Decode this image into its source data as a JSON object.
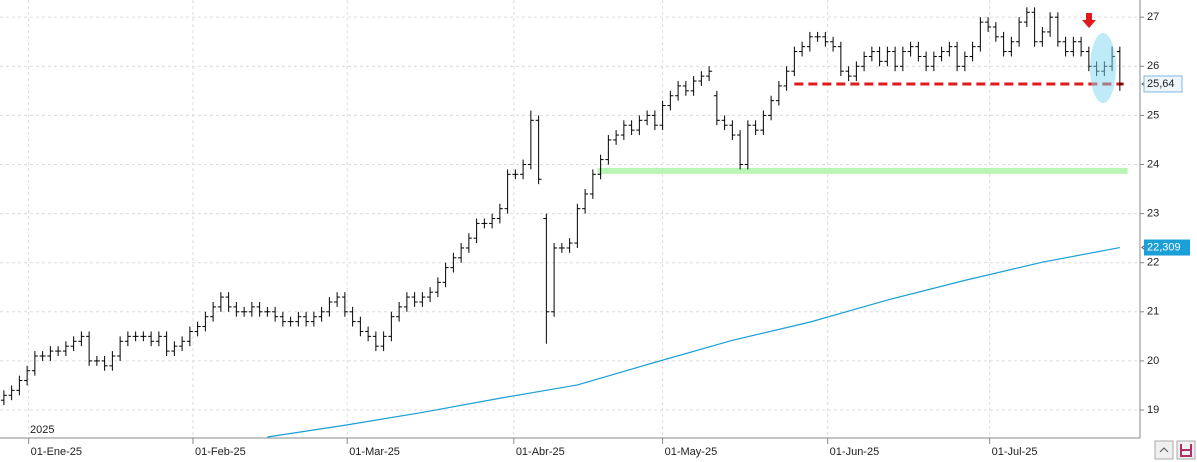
{
  "chart_data": {
    "type": "ohlc",
    "annotation": "2025",
    "xlim": [
      -0.5,
      146.6
    ],
    "xticks": [
      {
        "value": 3.2,
        "label": "01-Ene-25"
      },
      {
        "value": 24.4,
        "label": "01-Feb-25"
      },
      {
        "value": 44.3,
        "label": "01-Mar-25"
      },
      {
        "value": 65.8,
        "label": "01-Abr-25"
      },
      {
        "value": 85,
        "label": "01-May-25"
      },
      {
        "value": 106.3,
        "label": "01-Jun-25"
      },
      {
        "value": 127.2,
        "label": "01-Jul-25"
      }
    ],
    "ylim": [
      18.43,
      27.35
    ],
    "yticks": [
      19,
      20,
      21,
      22,
      23,
      24,
      25,
      26,
      27
    ],
    "grid": true,
    "bar_color": "#000000",
    "open": [
      19.2,
      19.3,
      19.4,
      19.6,
      19.8,
      20.1,
      20.1,
      20.2,
      20.2,
      20.3,
      20.4,
      20.5,
      20.0,
      20.0,
      19.9,
      20.1,
      20.4,
      20.5,
      20.5,
      20.5,
      20.4,
      20.5,
      20.2,
      20.3,
      20.4,
      20.6,
      20.7,
      20.9,
      21.1,
      21.3,
      21.1,
      21.0,
      21.0,
      21.1,
      21.0,
      21.0,
      20.9,
      20.8,
      20.8,
      20.9,
      20.8,
      20.9,
      21.0,
      21.2,
      21.3,
      21.0,
      20.8,
      20.6,
      20.5,
      20.3,
      20.5,
      20.9,
      21.1,
      21.3,
      21.2,
      21.3,
      21.4,
      21.6,
      21.9,
      22.1,
      22.3,
      22.5,
      22.8,
      22.8,
      22.9,
      23.1,
      23.8,
      23.8,
      24.0,
      24.9,
      22.9,
      21.0,
      22.3,
      22.3,
      22.4,
      23.1,
      23.4,
      23.8,
      24.1,
      24.5,
      24.6,
      24.8,
      24.7,
      24.9,
      25.0,
      24.8,
      25.2,
      25.4,
      25.6,
      25.5,
      25.7,
      25.8,
      25.4,
      24.9,
      24.8,
      24.6,
      24.0,
      24.8,
      24.7,
      25.0,
      25.3,
      25.6,
      25.9,
      26.3,
      26.4,
      26.6,
      26.6,
      26.5,
      26.4,
      25.9,
      25.8,
      26.0,
      26.2,
      26.3,
      26.1,
      26.3,
      26.0,
      26.3,
      26.4,
      26.2,
      26.0,
      26.2,
      26.3,
      26.4,
      26.0,
      26.2,
      26.4,
      26.9,
      26.8,
      26.6,
      26.3,
      26.5,
      26.9,
      27.1,
      26.5,
      26.7,
      27.0,
      26.5,
      26.3,
      26.5,
      26.3,
      26.0,
      25.9,
      26.0,
      26.3
    ],
    "high": [
      19.4,
      19.5,
      19.7,
      19.9,
      20.2,
      20.2,
      20.3,
      20.3,
      20.4,
      20.5,
      20.6,
      20.6,
      20.1,
      20.1,
      20.2,
      20.5,
      20.6,
      20.6,
      20.6,
      20.6,
      20.6,
      20.6,
      20.4,
      20.5,
      20.7,
      20.8,
      21.0,
      21.2,
      21.4,
      21.4,
      21.2,
      21.1,
      21.2,
      21.2,
      21.1,
      21.1,
      21.0,
      20.9,
      21.0,
      21.0,
      21.0,
      21.1,
      21.3,
      21.4,
      21.4,
      21.1,
      20.9,
      20.7,
      20.6,
      20.6,
      21.0,
      21.2,
      21.4,
      21.4,
      21.4,
      21.5,
      21.7,
      22.0,
      22.2,
      22.4,
      22.6,
      22.9,
      22.9,
      23.0,
      23.2,
      23.9,
      23.9,
      24.1,
      25.1,
      25.0,
      23.0,
      22.4,
      22.4,
      22.5,
      23.2,
      23.5,
      23.9,
      24.2,
      24.6,
      24.7,
      24.9,
      24.9,
      25.0,
      25.1,
      25.1,
      25.3,
      25.5,
      25.7,
      25.7,
      25.8,
      25.9,
      26.0,
      25.5,
      25.0,
      24.9,
      24.7,
      24.9,
      24.9,
      25.1,
      25.4,
      25.7,
      26.0,
      26.4,
      26.5,
      26.7,
      26.7,
      26.7,
      26.6,
      26.5,
      26.0,
      26.1,
      26.3,
      26.4,
      26.4,
      26.4,
      26.4,
      26.4,
      26.5,
      26.5,
      26.3,
      26.3,
      26.4,
      26.5,
      26.5,
      26.3,
      26.5,
      27.0,
      27.0,
      26.9,
      26.7,
      26.6,
      27.0,
      27.2,
      27.2,
      26.8,
      27.1,
      27.1,
      26.6,
      26.6,
      26.6,
      26.4,
      26.1,
      26.1,
      26.4,
      26.4
    ],
    "low": [
      19.1,
      19.2,
      19.3,
      19.5,
      19.7,
      20.0,
      20.0,
      20.1,
      20.1,
      20.2,
      20.3,
      19.9,
      19.9,
      19.8,
      19.8,
      20.0,
      20.3,
      20.4,
      20.4,
      20.3,
      20.3,
      20.1,
      20.1,
      20.2,
      20.3,
      20.5,
      20.6,
      20.8,
      21.0,
      21.0,
      20.9,
      20.9,
      20.9,
      20.9,
      20.9,
      20.8,
      20.7,
      20.7,
      20.7,
      20.7,
      20.7,
      20.8,
      20.9,
      21.1,
      20.9,
      20.7,
      20.5,
      20.4,
      20.2,
      20.2,
      20.4,
      20.8,
      21.0,
      21.1,
      21.1,
      21.2,
      21.3,
      21.5,
      21.8,
      22.0,
      22.2,
      22.4,
      22.7,
      22.7,
      22.8,
      23.0,
      23.7,
      23.7,
      23.9,
      23.6,
      20.35,
      20.9,
      22.2,
      22.2,
      22.3,
      23.0,
      23.3,
      23.7,
      24.0,
      24.4,
      24.5,
      24.6,
      24.6,
      24.8,
      24.7,
      24.7,
      25.1,
      25.3,
      25.4,
      25.4,
      25.6,
      25.7,
      24.8,
      24.7,
      24.5,
      23.9,
      23.9,
      24.6,
      24.6,
      24.9,
      25.2,
      25.5,
      25.8,
      26.2,
      26.3,
      26.5,
      26.4,
      26.3,
      25.8,
      25.7,
      25.7,
      25.9,
      26.1,
      26.0,
      26.0,
      25.9,
      25.9,
      26.2,
      26.1,
      25.9,
      25.9,
      26.1,
      26.2,
      25.9,
      25.9,
      26.1,
      26.3,
      26.7,
      26.5,
      26.2,
      26.2,
      26.4,
      26.8,
      26.4,
      26.4,
      26.6,
      26.4,
      26.2,
      26.2,
      26.2,
      25.9,
      25.8,
      25.8,
      25.9,
      25.5
    ],
    "close": [
      19.3,
      19.4,
      19.6,
      19.8,
      20.1,
      20.1,
      20.2,
      20.2,
      20.3,
      20.4,
      20.5,
      20.0,
      20.0,
      19.9,
      20.1,
      20.4,
      20.5,
      20.5,
      20.5,
      20.4,
      20.5,
      20.2,
      20.3,
      20.4,
      20.6,
      20.7,
      20.9,
      21.1,
      21.3,
      21.1,
      21.0,
      21.0,
      21.1,
      21.0,
      21.0,
      20.9,
      20.8,
      20.8,
      20.9,
      20.8,
      20.9,
      21.0,
      21.2,
      21.3,
      21.0,
      20.8,
      20.6,
      20.5,
      20.3,
      20.5,
      20.9,
      21.1,
      21.3,
      21.2,
      21.3,
      21.4,
      21.6,
      21.9,
      22.1,
      22.3,
      22.5,
      22.8,
      22.8,
      22.9,
      23.1,
      23.8,
      23.8,
      24.0,
      24.9,
      23.7,
      21.0,
      22.3,
      22.3,
      22.4,
      23.1,
      23.4,
      23.8,
      24.1,
      24.5,
      24.6,
      24.8,
      24.7,
      24.9,
      25.0,
      24.8,
      25.2,
      25.4,
      25.6,
      25.5,
      25.7,
      25.8,
      25.9,
      24.9,
      24.8,
      24.6,
      24.0,
      24.8,
      24.7,
      25.0,
      25.3,
      25.6,
      25.9,
      26.3,
      26.4,
      26.6,
      26.6,
      26.5,
      26.4,
      25.9,
      25.8,
      26.0,
      26.2,
      26.3,
      26.1,
      26.3,
      26.0,
      26.3,
      26.4,
      26.2,
      26.0,
      26.2,
      26.3,
      26.4,
      26.0,
      26.2,
      26.4,
      26.9,
      26.8,
      26.6,
      26.3,
      26.5,
      26.9,
      27.1,
      26.5,
      26.7,
      27.0,
      26.5,
      26.3,
      26.5,
      26.3,
      26.0,
      25.9,
      26.0,
      26.2,
      25.64
    ],
    "close_label": "25,64",
    "moving_average": {
      "color": "#1a9fd6",
      "x": [
        34,
        44,
        54,
        64,
        74,
        84,
        94,
        104,
        114,
        124,
        134,
        144
      ],
      "values": [
        18.45,
        18.69,
        18.95,
        19.24,
        19.51,
        19.97,
        20.42,
        20.79,
        21.24,
        21.64,
        22.01,
        22.309
      ],
      "value_label": "22,309"
    },
    "levels": [
      {
        "value": 25.64,
        "from": 102,
        "to": 144.5,
        "color": "#e0191b",
        "dashed": true
      },
      {
        "value": 23.87,
        "from": 76.6,
        "to": 145,
        "color": "#b9f5b4",
        "dashed": false
      }
    ]
  }
}
